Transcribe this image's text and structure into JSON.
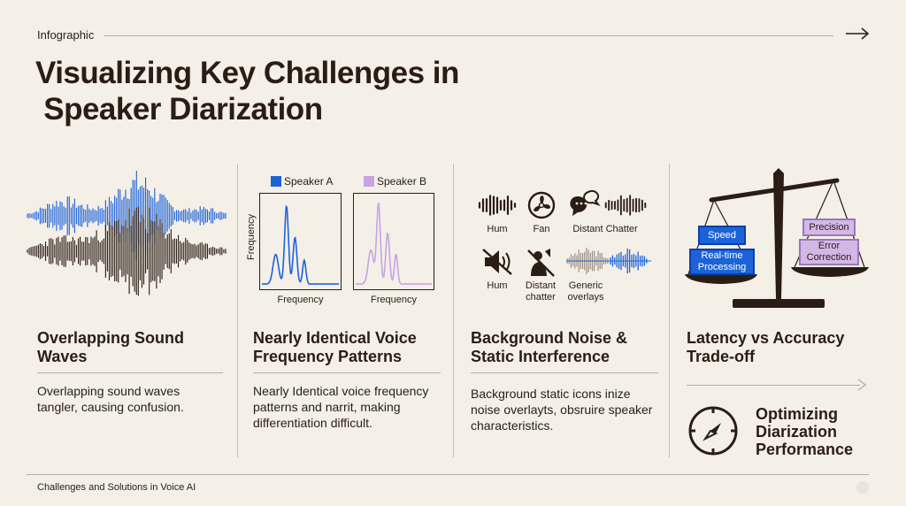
{
  "header": {
    "label": "Infographic",
    "title_line1": "Visualizing Key Challenges in",
    "title_line2": " Speaker Diarization"
  },
  "columns": [
    {
      "title": "Overlapping Sound Waves",
      "body": "Overlapping sound waves tangler, causing confusion."
    },
    {
      "title": "Nearly Identical Voice Frequency Patterns",
      "body": "Nearly Identical voice frequency patterns and narrit, making differentiation difficult."
    },
    {
      "title": "Background Noise & Static Interference",
      "body": "Background static icons inize noise overlayts, obsruire speaker characteristics."
    },
    {
      "title": "Latency vs Accuracy Trade-off",
      "body": ""
    }
  ],
  "speakers": {
    "a": "Speaker A",
    "b": "Speaker B",
    "ylabel": "Frequency",
    "xlabel_a": "Frequency",
    "xlabel_b": "Frequency"
  },
  "noise_labels": {
    "hum": "Hum",
    "fan": "Fan",
    "chatter": "Distant Chatter",
    "hum2": "Hum",
    "distant": "Distant chatter",
    "generic": "Generic overlays"
  },
  "scale": {
    "speed": "Speed",
    "realtime": "Real-time Processing",
    "precision": "Precision",
    "error": "Error Correction"
  },
  "optimize": {
    "label": "Optimizing Diarization Performance"
  },
  "footer": {
    "text": "Challenges and Solutions in Voice AI"
  },
  "colors": {
    "blue": "#1d63d8",
    "violet": "#c9a3e3",
    "dark": "#2b1d14",
    "bg": "#f4efe7"
  },
  "icons": [
    "arrow-right-icon",
    "waveform-icon",
    "fan-icon",
    "chat-bubbles-icon",
    "mute-speaker-icon",
    "muted-person-icon",
    "balance-scale-icon",
    "compass-icon"
  ]
}
